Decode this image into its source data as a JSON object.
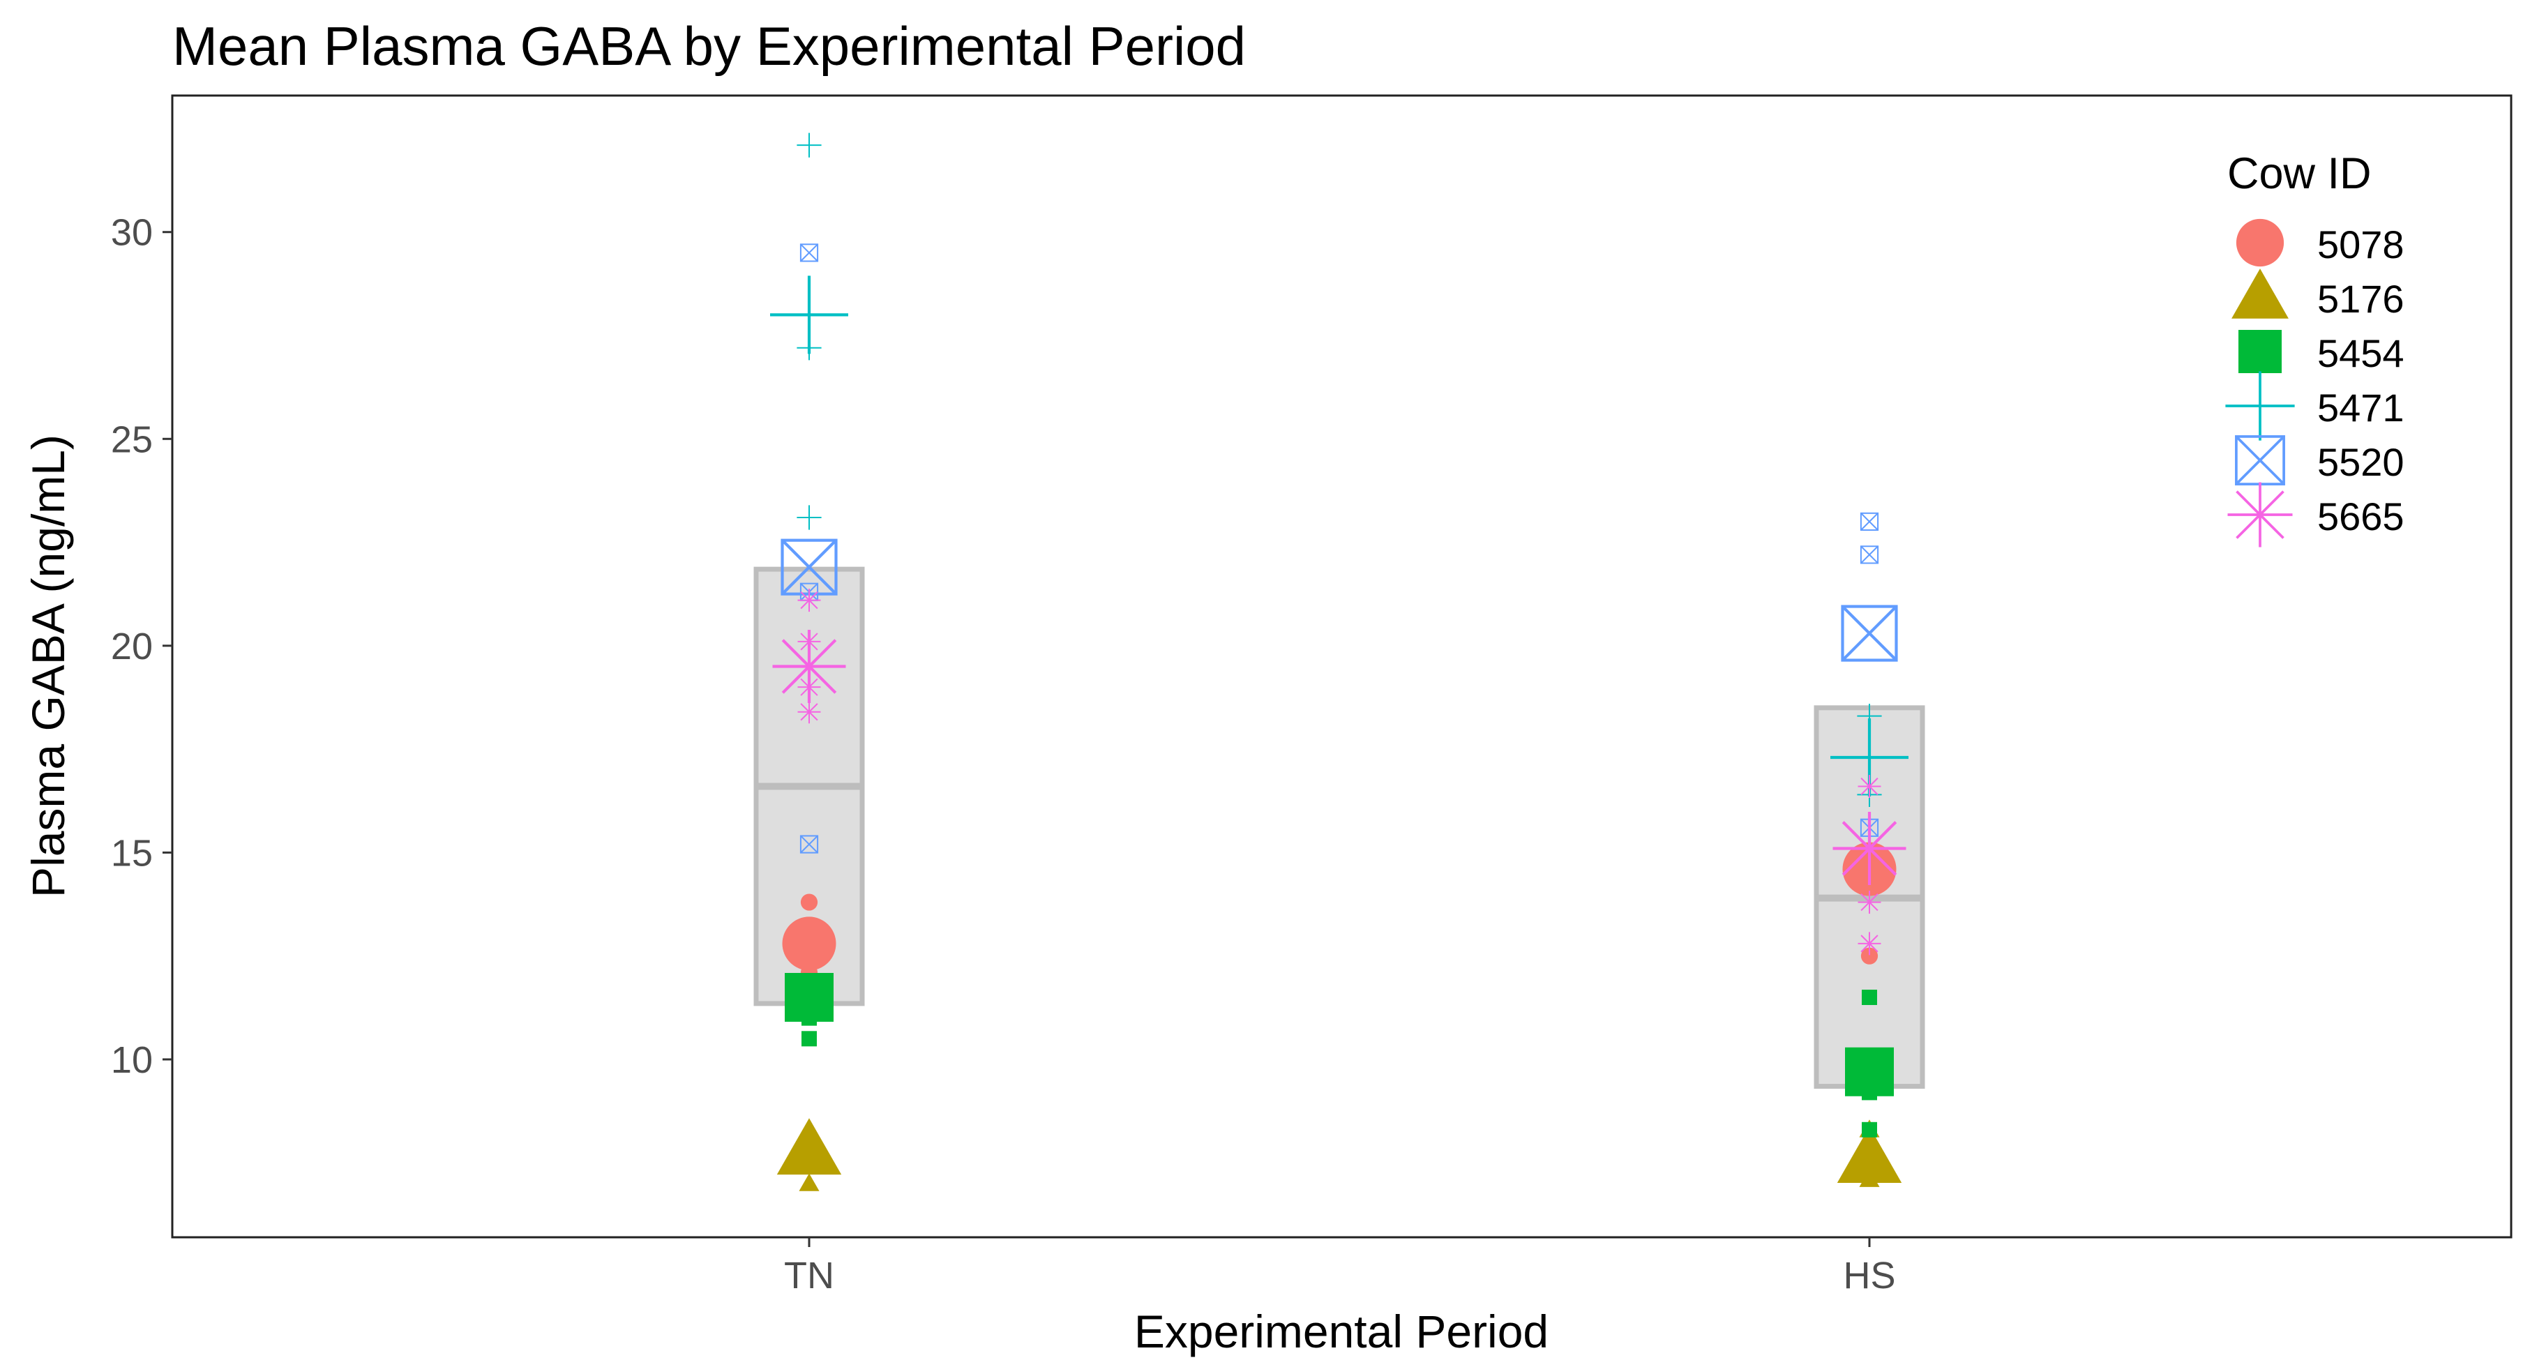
{
  "chart_data": {
    "type": "scatter",
    "title": "Mean Plasma GABA by Experimental Period",
    "xlabel": "Experimental Period",
    "ylabel": "Plasma GABA (ng/mL)",
    "categories": [
      "TN",
      "HS"
    ],
    "ylim": [
      5.7,
      33.3
    ],
    "yticks": [
      10,
      15,
      20,
      25,
      30
    ],
    "grid": false,
    "legend": {
      "title": "Cow ID",
      "placement": "top-right"
    },
    "boxes": [
      {
        "category": "TN",
        "q1": 11.35,
        "median": 16.6,
        "q3": 21.85
      },
      {
        "category": "HS",
        "q1": 9.35,
        "median": 13.9,
        "q3": 18.5
      }
    ],
    "series": [
      {
        "name": "5078",
        "shape": "circle",
        "color": "#F8766D",
        "means": {
          "TN": 12.8,
          "HS": 14.6
        },
        "points": {
          "TN": [
            13.8,
            12.1
          ],
          "HS": [
            12.5,
            14.9
          ]
        }
      },
      {
        "name": "5176",
        "shape": "triangle",
        "color": "#B79F00",
        "means": {
          "TN": 7.8,
          "HS": 7.6
        },
        "points": {
          "TN": [
            7.0
          ],
          "HS": [
            7.1,
            8.3
          ]
        }
      },
      {
        "name": "5454",
        "shape": "square",
        "color": "#00BA38",
        "means": {
          "TN": 11.5,
          "HS": 9.7
        },
        "points": {
          "TN": [
            10.5,
            11.0
          ],
          "HS": [
            11.5,
            8.3,
            9.2
          ]
        }
      },
      {
        "name": "5471",
        "shape": "plus",
        "color": "#00BFC4",
        "means": {
          "TN": 28.0,
          "HS": 17.3
        },
        "points": {
          "TN": [
            32.1,
            27.2,
            23.1
          ],
          "HS": [
            18.3,
            16.4
          ]
        }
      },
      {
        "name": "5520",
        "shape": "square-x",
        "color": "#619CFF",
        "means": {
          "TN": 21.9,
          "HS": 20.3
        },
        "points": {
          "TN": [
            29.5,
            21.3,
            15.2
          ],
          "HS": [
            23.0,
            22.2,
            15.6
          ]
        }
      },
      {
        "name": "5665",
        "shape": "asterisk",
        "color": "#F564E3",
        "means": {
          "TN": 19.5,
          "HS": 15.1
        },
        "points": {
          "TN": [
            21.1,
            20.1,
            19.0,
            18.4
          ],
          "HS": [
            13.8,
            12.8,
            16.6
          ]
        }
      }
    ]
  }
}
